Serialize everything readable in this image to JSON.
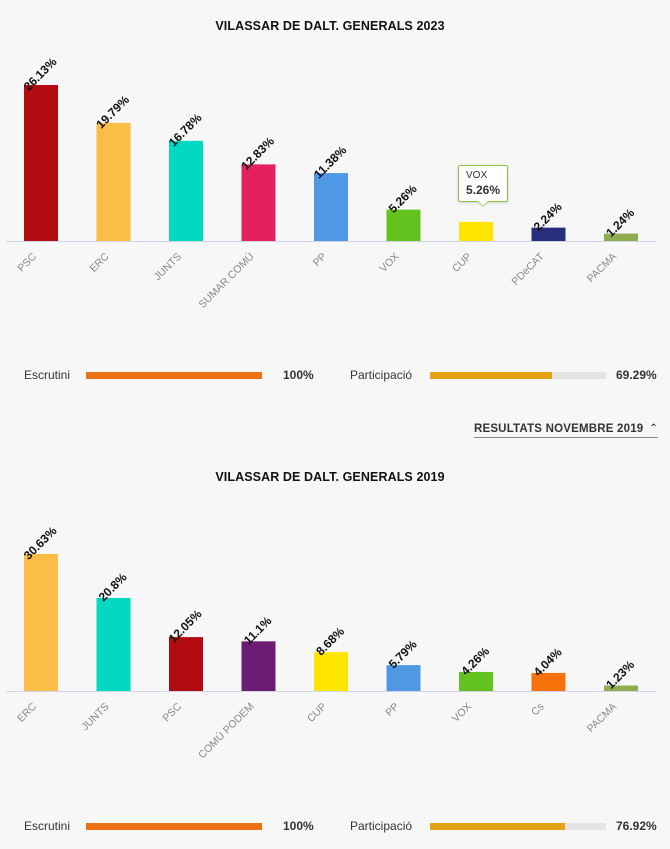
{
  "colors": {
    "PSC": "#b20b10",
    "ERC": "#fbbd45",
    "JUNTS": "#03d8c0",
    "SUMAR COMÚ": "#e5205e",
    "PP": "#4f98e3",
    "VOX": "#63c21e",
    "CUP": "#ffe500",
    "PDeCAT": "#28307d",
    "PACMA": "#8fad4f",
    "COMÚ PODEM": "#6b1d74",
    "Cs": "#f7720b",
    "escrutini_bar": "#ec7213",
    "participacio_bar": "#e3a214",
    "baseline": "#cfd4e8"
  },
  "results_2023": {
    "title": "VILASSAR DE DALT. GENERALS 2023",
    "escrutini_label": "Escrutini",
    "escrutini_value": "100%",
    "escrutini_pct": 100,
    "participacio_label": "Participació",
    "participacio_value": "69.29%",
    "participacio_pct": 69.29,
    "tooltip": {
      "party": "VOX",
      "value": "5.26%"
    }
  },
  "toggle_label": "RESULTATS NOVEMBRE 2019",
  "results_2019": {
    "title": "VILASSAR DE DALT. GENERALS 2019",
    "escrutini_label": "Escrutini",
    "escrutini_value": "100%",
    "escrutini_pct": 100,
    "participacio_label": "Participació",
    "participacio_value": "76.92%",
    "participacio_pct": 76.92
  },
  "chart_data": [
    {
      "type": "bar",
      "title": "VILASSAR DE DALT. GENERALS 2023",
      "categories": [
        "PSC",
        "ERC",
        "JUNTS",
        "SUMAR COMÚ",
        "PP",
        "VOX",
        "CUP",
        "PDeCAT",
        "PACMA"
      ],
      "values": [
        26.13,
        19.79,
        16.78,
        12.83,
        11.38,
        5.26,
        3.2,
        2.24,
        1.24
      ],
      "labels": [
        "26.13%",
        "19.79%",
        "16.78%",
        "12.83%",
        "11.38%",
        "5.26%",
        "",
        "2.24%",
        "1.24%"
      ],
      "ylim": [
        0,
        26.13
      ]
    },
    {
      "type": "bar",
      "title": "VILASSAR DE DALT. GENERALS 2019",
      "categories": [
        "ERC",
        "JUNTS",
        "PSC",
        "COMÚ PODEM",
        "CUP",
        "PP",
        "VOX",
        "Cs",
        "PACMA"
      ],
      "values": [
        30.63,
        20.8,
        12.05,
        11.1,
        8.68,
        5.79,
        4.26,
        4.04,
        1.23
      ],
      "labels": [
        "30.63%",
        "20.8%",
        "12.05%",
        "11.1%",
        "8.68%",
        "5.79%",
        "4.26%",
        "4.04%",
        "1.23%"
      ],
      "ylim": [
        0,
        30.63
      ]
    }
  ]
}
